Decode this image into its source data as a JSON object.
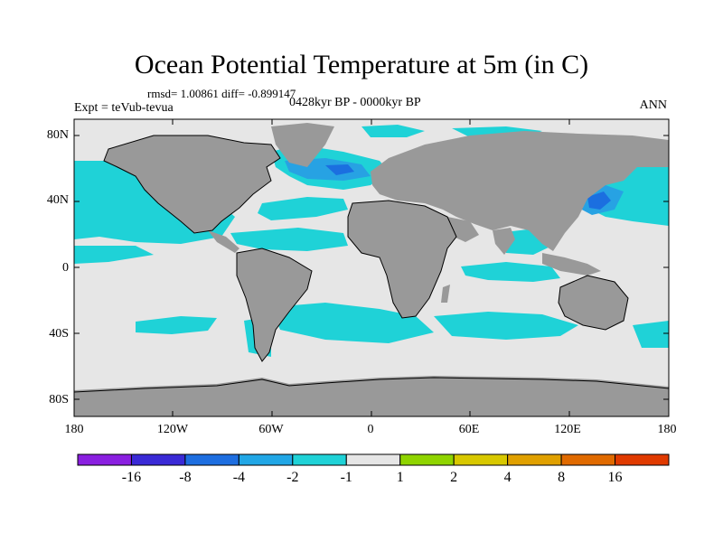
{
  "header": {
    "title": "Ocean Potential Temperature at 5m (in C)",
    "stats": "rmsd= 1.00861 diff= -0.899147",
    "experiment": "Expt = teVub-tevua",
    "period": "0428kyr BP - 0000kyr BP",
    "season": "ANN"
  },
  "axes": {
    "lat_ticks": [
      "80N",
      "40N",
      "0",
      "40S",
      "80S"
    ],
    "lon_ticks": [
      "180",
      "120W",
      "60W",
      "0",
      "60E",
      "120E",
      "180"
    ]
  },
  "colors": {
    "land": "#999999",
    "near_zero": "#e6e6e6",
    "cyan": "#1fd2d7",
    "light_blue": "#27a2e3",
    "blue": "#1b6fe0",
    "dark_blue": "#2f2fd0"
  },
  "colorbar": {
    "colors": [
      "#8a1fe0",
      "#3a2ad6",
      "#1e6ee0",
      "#21a7e6",
      "#1fd2d7",
      "#e6e6e6",
      "#8fd400",
      "#d8c800",
      "#e0a000",
      "#e06a00",
      "#e03a00"
    ],
    "labels": [
      "-16",
      "-8",
      "-4",
      "-2",
      "-1",
      "1",
      "2",
      "4",
      "8",
      "16"
    ]
  }
}
